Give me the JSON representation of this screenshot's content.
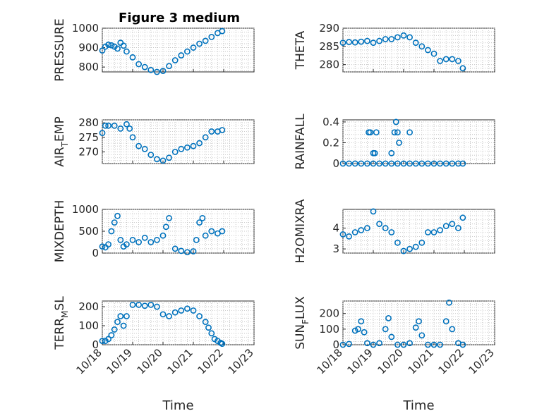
{
  "figure": {
    "title": "Figure 3 medium",
    "colors": {
      "marker": "#0072BD",
      "axis": "#262626",
      "grid": "#bdbdbd"
    }
  },
  "chart_data": [
    {
      "id": "pressure",
      "type": "scatter",
      "title": "Figure 3 medium",
      "ylabel": "PRESSURE",
      "xlabel": "",
      "ylim": [
        775,
        1000
      ],
      "yticks": [
        800,
        900,
        1000
      ],
      "xlim": [
        0,
        5
      ],
      "xticks": [
        0,
        1,
        2,
        3,
        4,
        5
      ],
      "xticklabels": [],
      "x": [
        0,
        0.1,
        0.2,
        0.3,
        0.4,
        0.5,
        0.6,
        0.7,
        0.8,
        1.0,
        1.2,
        1.4,
        1.6,
        1.8,
        2.0,
        2.2,
        2.4,
        2.6,
        2.8,
        3.0,
        3.2,
        3.4,
        3.6,
        3.8,
        3.95
      ],
      "y": [
        885,
        905,
        915,
        912,
        905,
        895,
        925,
        910,
        880,
        850,
        815,
        800,
        785,
        775,
        780,
        805,
        835,
        860,
        880,
        900,
        920,
        935,
        955,
        975,
        985
      ]
    },
    {
      "id": "theta",
      "type": "scatter",
      "ylabel": "THETA",
      "xlabel": "",
      "ylim": [
        278,
        290
      ],
      "yticks": [
        280,
        285,
        290
      ],
      "xlim": [
        0,
        5
      ],
      "xticks": [
        0,
        1,
        2,
        3,
        4,
        5
      ],
      "xticklabels": [],
      "x": [
        0,
        0.2,
        0.4,
        0.6,
        0.8,
        1.0,
        1.2,
        1.4,
        1.6,
        1.8,
        2.0,
        2.2,
        2.4,
        2.6,
        2.8,
        3.0,
        3.2,
        3.4,
        3.6,
        3.8,
        3.95
      ],
      "y": [
        286,
        286.2,
        286.1,
        286.3,
        286.5,
        286,
        286.5,
        287,
        287,
        287.5,
        288,
        287.5,
        286,
        285,
        284,
        283,
        281,
        281.5,
        281.5,
        281,
        279
      ]
    },
    {
      "id": "air_temp",
      "type": "scatter",
      "ylabel": "AIR_TEMP",
      "ylabel_main": "AIR",
      "ylabel_sub": "T",
      "ylabel_rest": "EMP",
      "xlabel": "",
      "ylim": [
        266,
        281
      ],
      "yticks": [
        270,
        275,
        280
      ],
      "xlim": [
        0,
        5
      ],
      "xticks": [
        0,
        1,
        2,
        3,
        4,
        5
      ],
      "xticklabels": [],
      "x": [
        0,
        0.1,
        0.2,
        0.4,
        0.6,
        0.8,
        0.9,
        1.0,
        1.2,
        1.4,
        1.6,
        1.8,
        2.0,
        2.2,
        2.4,
        2.6,
        2.8,
        3.0,
        3.2,
        3.4,
        3.6,
        3.8,
        3.95
      ],
      "y": [
        276.5,
        279,
        279,
        279,
        278,
        279.5,
        278,
        275,
        272,
        271,
        269,
        267.5,
        267,
        268,
        270,
        271,
        271.5,
        272,
        273,
        275,
        277,
        277,
        277.5
      ]
    },
    {
      "id": "rainfall",
      "type": "scatter",
      "ylabel": "RAINFALL",
      "xlabel": "",
      "ylim": [
        0,
        0.42
      ],
      "yticks": [
        0,
        0.2,
        0.4
      ],
      "xlim": [
        0,
        5
      ],
      "xticks": [
        0,
        1,
        2,
        3,
        4,
        5
      ],
      "xticklabels": [],
      "x": [
        0,
        0.2,
        0.4,
        0.6,
        0.8,
        1.0,
        1.2,
        1.4,
        1.6,
        1.8,
        2.0,
        2.2,
        2.4,
        2.6,
        2.8,
        3.0,
        3.2,
        3.4,
        3.6,
        3.8,
        3.95,
        0.85,
        0.9,
        1.0,
        1.05,
        1.1,
        1.6,
        1.7,
        1.75,
        1.8,
        1.85,
        2.2
      ],
      "y": [
        0,
        0,
        0,
        0,
        0,
        0,
        0,
        0,
        0,
        0,
        0,
        0,
        0,
        0,
        0,
        0,
        0,
        0,
        0,
        0,
        0,
        0.3,
        0.3,
        0.1,
        0.1,
        0.3,
        0.1,
        0.3,
        0.4,
        0.3,
        0.2,
        0.3
      ]
    },
    {
      "id": "mixdepth",
      "type": "scatter",
      "ylabel": "MIXDEPTH",
      "xlabel": "",
      "ylim": [
        0,
        1000
      ],
      "yticks": [
        0,
        500,
        1000
      ],
      "xlim": [
        0,
        5
      ],
      "xticks": [
        0,
        1,
        2,
        3,
        4,
        5
      ],
      "xticklabels": [],
      "x": [
        0,
        0.1,
        0.2,
        0.3,
        0.4,
        0.5,
        0.6,
        0.7,
        0.8,
        1.0,
        1.2,
        1.4,
        1.6,
        1.8,
        2.0,
        2.1,
        2.2,
        2.4,
        2.6,
        2.8,
        3.0,
        3.1,
        3.2,
        3.3,
        3.4,
        3.6,
        3.8,
        3.95
      ],
      "y": [
        150,
        130,
        200,
        500,
        700,
        850,
        300,
        150,
        200,
        300,
        250,
        350,
        250,
        300,
        400,
        600,
        800,
        100,
        50,
        20,
        40,
        300,
        700,
        800,
        400,
        500,
        450,
        500
      ]
    },
    {
      "id": "h2omixra",
      "type": "scatter",
      "ylabel": "H2OMIXRA",
      "xlabel": "",
      "ylim": [
        2.8,
        4.9
      ],
      "yticks": [
        3,
        4
      ],
      "xlim": [
        0,
        5
      ],
      "xticks": [
        0,
        1,
        2,
        3,
        4,
        5
      ],
      "xticklabels": [],
      "x": [
        0,
        0.2,
        0.4,
        0.6,
        0.8,
        1.0,
        1.2,
        1.4,
        1.6,
        1.8,
        2.0,
        2.2,
        2.4,
        2.6,
        2.8,
        3.0,
        3.2,
        3.4,
        3.6,
        3.8,
        3.95
      ],
      "y": [
        3.7,
        3.6,
        3.8,
        3.9,
        4.0,
        4.8,
        4.2,
        4.0,
        3.8,
        3.3,
        2.9,
        3.0,
        3.1,
        3.3,
        3.8,
        3.8,
        3.9,
        4.1,
        4.2,
        4.0,
        4.5
      ]
    },
    {
      "id": "terr_msl",
      "type": "scatter",
      "ylabel": "TERR_MSL",
      "ylabel_main": "TERR",
      "ylabel_sub": "M",
      "ylabel_rest": "SL",
      "xlabel": "Time",
      "ylim": [
        0,
        230
      ],
      "yticks": [
        0,
        100,
        200
      ],
      "xlim": [
        0,
        5
      ],
      "xticks": [
        0,
        1,
        2,
        3,
        4,
        5
      ],
      "xticklabels": [
        "10/18",
        "10/19",
        "10/20",
        "10/21",
        "10/22",
        "10/23"
      ],
      "x": [
        0,
        0.1,
        0.2,
        0.3,
        0.4,
        0.5,
        0.6,
        0.7,
        0.8,
        1.0,
        1.2,
        1.4,
        1.6,
        1.8,
        2.0,
        2.2,
        2.4,
        2.6,
        2.8,
        3.0,
        3.2,
        3.4,
        3.5,
        3.6,
        3.7,
        3.8,
        3.9,
        3.95
      ],
      "y": [
        20,
        20,
        30,
        50,
        80,
        120,
        150,
        100,
        150,
        210,
        210,
        205,
        210,
        200,
        160,
        150,
        170,
        180,
        190,
        180,
        150,
        120,
        90,
        60,
        30,
        20,
        10,
        5
      ]
    },
    {
      "id": "sun_flux",
      "type": "scatter",
      "ylabel": "SUN_FLUX",
      "ylabel_main": "SUN",
      "ylabel_sub": "F",
      "ylabel_rest": "LUX",
      "xlabel": "Time",
      "ylim": [
        0,
        280
      ],
      "yticks": [
        0,
        100,
        200
      ],
      "xlim": [
        0,
        5
      ],
      "xticks": [
        0,
        1,
        2,
        3,
        4,
        5
      ],
      "xticklabels": [
        "10/18",
        "10/19",
        "10/20",
        "10/21",
        "10/22",
        "10/23"
      ],
      "x": [
        0,
        0.2,
        0.4,
        0.5,
        0.6,
        0.7,
        0.8,
        1.0,
        1.2,
        1.4,
        1.5,
        1.6,
        1.8,
        2.0,
        2.2,
        2.4,
        2.5,
        2.6,
        2.8,
        3.0,
        3.2,
        3.4,
        3.5,
        3.6,
        3.8,
        3.95
      ],
      "y": [
        0,
        5,
        90,
        100,
        150,
        80,
        10,
        0,
        10,
        100,
        170,
        50,
        0,
        0,
        10,
        110,
        150,
        60,
        0,
        0,
        0,
        150,
        270,
        100,
        10,
        0
      ]
    }
  ]
}
